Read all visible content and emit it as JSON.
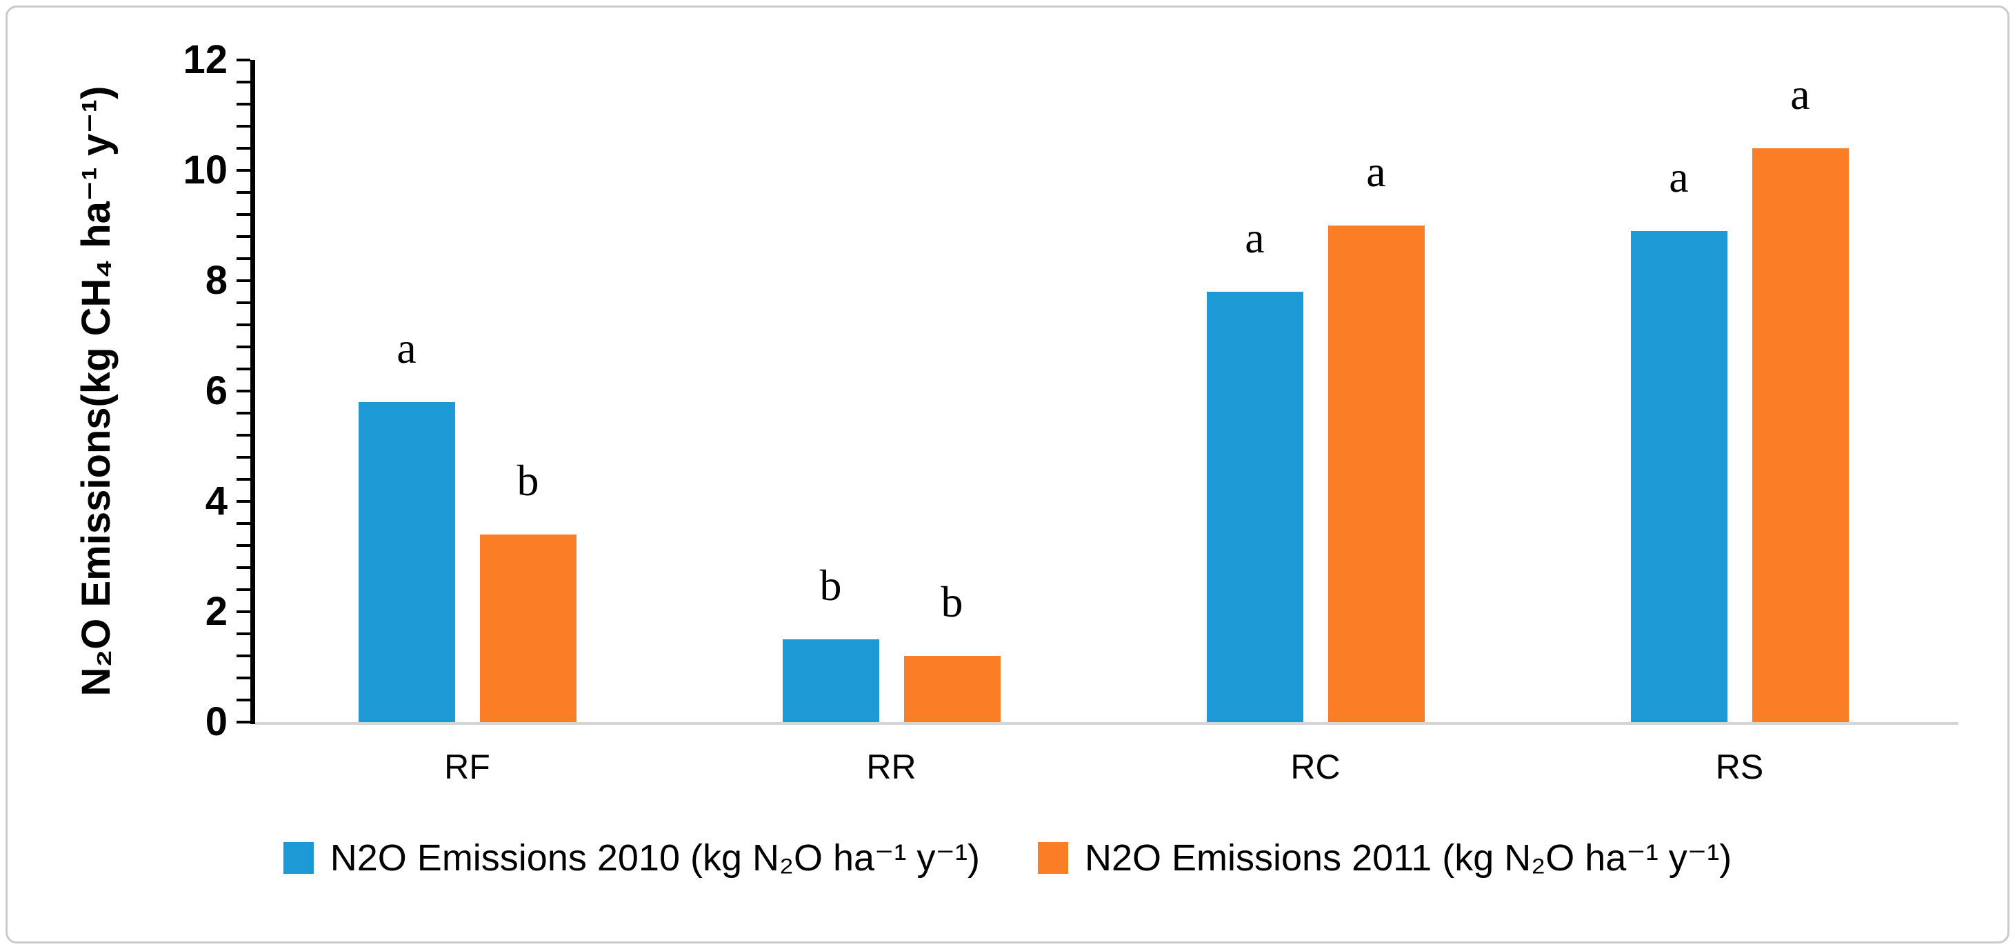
{
  "chart_data": {
    "type": "bar",
    "categories": [
      "RF",
      "RR",
      "RC",
      "RS"
    ],
    "series": [
      {
        "name": "N2O Emissions 2010 (kg N₂O ha⁻¹ y⁻¹)",
        "color": "#1d9ad6",
        "values": [
          5.8,
          1.5,
          7.8,
          8.9
        ],
        "sig_letters": [
          "a",
          "b",
          "a",
          "a"
        ]
      },
      {
        "name": "N2O Emissions 2011 (kg N₂O ha⁻¹ y⁻¹)",
        "color": "#fb7d26",
        "values": [
          3.4,
          1.2,
          9.0,
          10.4
        ],
        "sig_letters": [
          "b",
          "b",
          "a",
          "a"
        ]
      }
    ],
    "xlabel": "",
    "ylabel": "N₂O Emissions(kg CH₄ ha⁻¹ y⁻¹)",
    "ylim": [
      0,
      12
    ],
    "yticks": [
      0,
      2,
      4,
      6,
      8,
      10,
      12
    ],
    "minor_tick_step": 0.4,
    "grid": false,
    "legend_position": "bottom",
    "axis_color": "#000000",
    "baseline_color": "#d6d6d6"
  }
}
